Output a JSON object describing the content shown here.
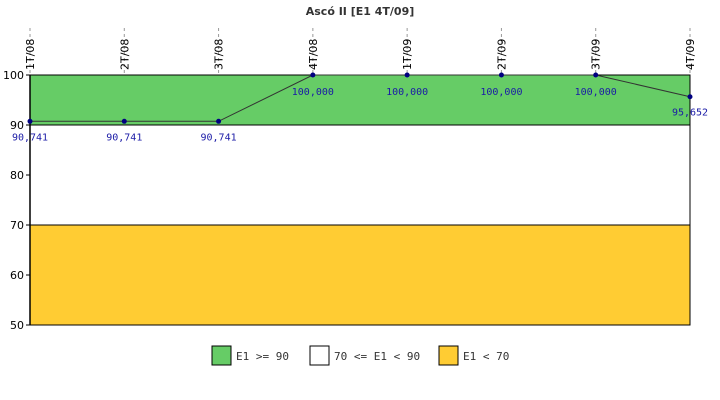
{
  "chart_data": {
    "type": "line",
    "title": "Ascó II [E1 4T/09]",
    "categories": [
      "1T/08",
      "2T/08",
      "3T/08",
      "4T/08",
      "1T/09",
      "2T/09",
      "3T/09",
      "4T/09"
    ],
    "series": [
      {
        "values": [
          90.741,
          90.741,
          90.741,
          100.0,
          100.0,
          100.0,
          100.0,
          95.652
        ],
        "labels": [
          "90,741",
          "90,741",
          "90,741",
          "100,000",
          "100,000",
          "100,000",
          "100,000",
          "95,652"
        ],
        "color": "#000080"
      }
    ],
    "ylim": [
      50,
      100
    ],
    "yticks": [
      "50",
      "60",
      "70",
      "80",
      "90",
      "100"
    ],
    "bands": [
      {
        "from": 90,
        "to": 100,
        "color": "#66cc66",
        "label": "E1 >= 90"
      },
      {
        "from": 70,
        "to": 90,
        "color": "#ffffff",
        "label": "70 <= E1 < 90"
      },
      {
        "from": 50,
        "to": 70,
        "color": "#ffcc33",
        "label": "E1 < 70"
      }
    ],
    "legend_position": "bottom"
  }
}
